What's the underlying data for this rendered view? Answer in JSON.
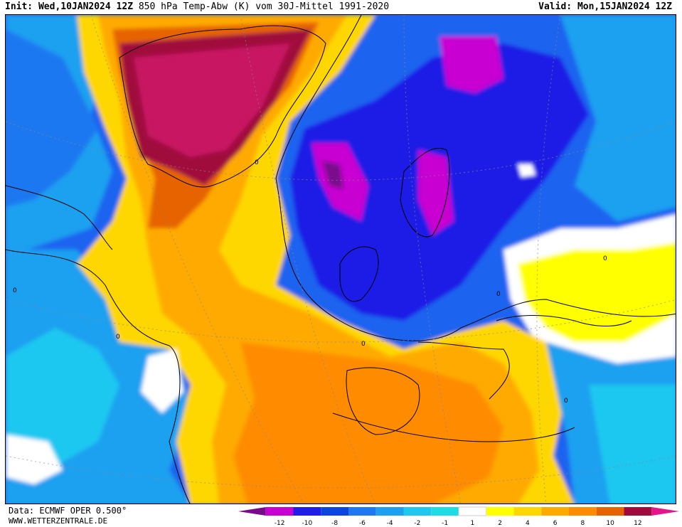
{
  "header": {
    "init_label": "Init:",
    "init_value": "Wed,10JAN2024 12Z",
    "title": "850 hPa Temp-Abw (K) vom 30J-Mittel 1991-2020",
    "valid_label": "Valid:",
    "valid_value": "Mon,15JAN2024 12Z"
  },
  "footer": {
    "data_source": "Data: ECMWF OPER 0.500°",
    "website": "WWW.WETTERZENTRALE.DE"
  },
  "map": {
    "contour_label": "0"
  },
  "legend": {
    "colors": [
      "#7a0a8c",
      "#c800d2",
      "#1e1ee6",
      "#0a46dc",
      "#1e78f0",
      "#1ea0f0",
      "#1ec8f0",
      "#1edce6",
      "#ffffff",
      "#ffff00",
      "#ffd700",
      "#ffaa00",
      "#ff8c00",
      "#e66400",
      "#a00a3c",
      "#e6148c"
    ],
    "tick_labels": [
      "-12",
      "-10",
      "-8",
      "-6",
      "-4",
      "-2",
      "-1",
      "1",
      "2",
      "4",
      "6",
      "8",
      "10",
      "12"
    ]
  }
}
